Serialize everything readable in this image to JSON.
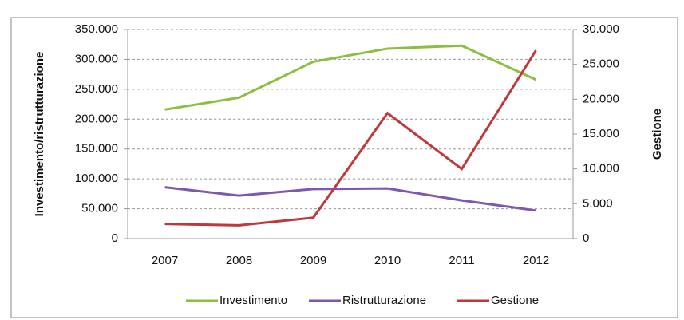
{
  "chart_data": {
    "type": "line",
    "categories": [
      "2007",
      "2008",
      "2009",
      "2010",
      "2011",
      "2012"
    ],
    "ylabel": "Investimento/ristrutturazione",
    "y2label": "Gestione",
    "ylim": [
      0,
      350000
    ],
    "yticks": [
      0,
      {
        "value": 50000,
        "label": "50.000"
      },
      {
        "value": 100000,
        "label": "100.000"
      },
      {
        "value": 150000,
        "label": "150.000"
      },
      {
        "value": 200000,
        "label": "200.000"
      },
      {
        "value": 250000,
        "label": "250.000"
      },
      {
        "value": 300000,
        "label": "300.000"
      },
      {
        "value": 350000,
        "label": "350.000"
      }
    ],
    "y2lim": [
      0,
      30000
    ],
    "y2ticks": [
      0,
      {
        "value": 5000,
        "label": "5.000"
      },
      {
        "value": 10000,
        "label": "10.000"
      },
      {
        "value": 15000,
        "label": "15.000"
      },
      {
        "value": 20000,
        "label": "20.000"
      },
      {
        "value": 25000,
        "label": "25.000"
      },
      {
        "value": 30000,
        "label": "30.000"
      }
    ],
    "grid": true,
    "legend": "bottom",
    "series": [
      {
        "name": "Investimento",
        "color": "#8cbf3f",
        "values": [
          216000,
          236000,
          296000,
          318000,
          323000,
          266000
        ]
      },
      {
        "name": "Ristrutturazione",
        "color": "#7e57b0",
        "values": [
          86000,
          72000,
          83000,
          84000,
          64000,
          47000
        ]
      },
      {
        "name": "Gestione",
        "color": "#c0383a",
        "axis": "y2",
        "values": [
          2100,
          1900,
          3000,
          18000,
          10000,
          27000
        ]
      }
    ]
  }
}
